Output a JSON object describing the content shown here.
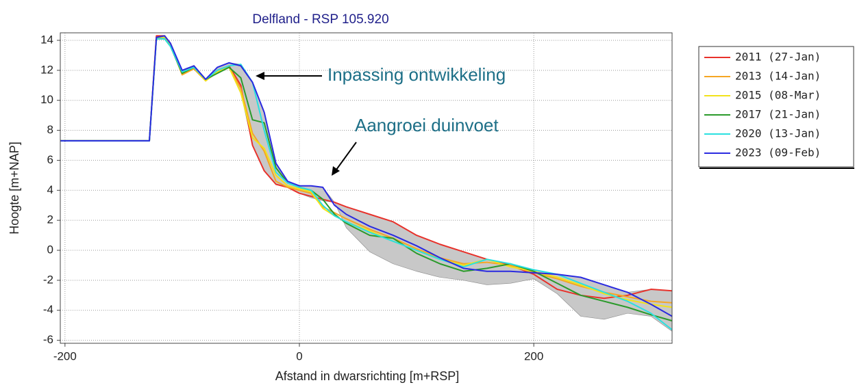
{
  "chart_data": {
    "type": "line",
    "title": "Delfland - RSP 105.920",
    "xlabel": "Afstand in dwarsrichting [m+RSP]",
    "ylabel": "Hoogte [m+NAP]",
    "annotations": [
      "Inpassing ontwikkeling",
      "Aangroei duinvoet"
    ],
    "xlim": [
      -204,
      318
    ],
    "ylim": [
      -6.2,
      14.5
    ],
    "xticks": [
      -200,
      0,
      200
    ],
    "yticks": [
      -6,
      -4,
      -2,
      0,
      2,
      4,
      6,
      8,
      10,
      12,
      14
    ],
    "grid": true,
    "legend": "outside-right",
    "x": [
      -204,
      -130,
      -128,
      -122,
      -115,
      -110,
      -100,
      -90,
      -80,
      -70,
      -60,
      -50,
      -40,
      -30,
      -20,
      -10,
      0,
      10,
      20,
      30,
      40,
      60,
      80,
      100,
      120,
      140,
      160,
      180,
      200,
      220,
      240,
      260,
      280,
      300,
      318
    ],
    "band": {
      "color": "#c8c8c8",
      "lower": [
        7.3,
        7.3,
        7.3,
        14.1,
        14.1,
        13.6,
        11.7,
        12.1,
        11.3,
        11.8,
        12.2,
        10.5,
        7.0,
        5.3,
        4.4,
        4.2,
        3.8,
        3.5,
        3.3,
        3.2,
        1.5,
        -0.1,
        -0.9,
        -1.4,
        -1.8,
        -2.0,
        -2.3,
        -2.2,
        -1.9,
        -2.9,
        -4.4,
        -4.6,
        -4.2,
        -4.4,
        -5.4
      ]
    },
    "series": [
      {
        "name": "2011 (27-Jan)",
        "color": "#e8312a",
        "values": [
          7.3,
          7.3,
          7.3,
          14.3,
          14.3,
          13.8,
          11.9,
          12.3,
          11.4,
          12.0,
          12.3,
          11.0,
          7.0,
          5.3,
          4.4,
          4.2,
          3.8,
          3.6,
          3.4,
          3.2,
          2.9,
          2.4,
          1.9,
          1.0,
          0.4,
          -0.1,
          -0.6,
          -1.0,
          -1.6,
          -2.6,
          -3.0,
          -3.2,
          -3.0,
          -2.6,
          -2.7
        ]
      },
      {
        "name": "2013 (14-Jan)",
        "color": "#f5a623",
        "values": [
          7.3,
          7.3,
          7.3,
          14.2,
          14.2,
          13.7,
          11.7,
          12.1,
          11.3,
          11.9,
          12.2,
          10.8,
          7.8,
          6.6,
          4.6,
          4.2,
          4.0,
          3.8,
          2.9,
          2.5,
          2.1,
          1.4,
          0.8,
          0.1,
          -0.5,
          -0.9,
          -0.8,
          -1.0,
          -1.5,
          -1.9,
          -2.4,
          -2.8,
          -3.1,
          -3.4,
          -3.5
        ]
      },
      {
        "name": "2015 (08-Mar)",
        "color": "#f2e21a",
        "values": [
          7.3,
          7.3,
          7.3,
          14.2,
          14.2,
          13.7,
          11.8,
          12.2,
          11.3,
          11.9,
          12.2,
          10.5,
          7.5,
          6.8,
          5.0,
          4.3,
          4.1,
          3.9,
          2.8,
          2.3,
          1.9,
          1.3,
          0.6,
          0.0,
          -0.6,
          -1.0,
          -0.6,
          -1.1,
          -1.4,
          -1.8,
          -2.3,
          -2.9,
          -3.3,
          -3.6,
          -3.8
        ]
      },
      {
        "name": "2017 (21-Jan)",
        "color": "#2a9a2a",
        "values": [
          7.3,
          7.3,
          7.3,
          14.1,
          14.1,
          13.6,
          11.8,
          12.2,
          11.4,
          11.8,
          12.2,
          11.5,
          8.7,
          8.5,
          5.5,
          4.5,
          4.2,
          4.0,
          3.4,
          2.4,
          1.8,
          1.0,
          0.8,
          -0.2,
          -0.9,
          -1.4,
          -1.2,
          -0.9,
          -1.4,
          -2.2,
          -3.0,
          -3.4,
          -3.8,
          -4.3,
          -4.7
        ]
      },
      {
        "name": "2020 (13-Jan)",
        "color": "#29e0e0",
        "values": [
          7.3,
          7.3,
          7.3,
          14.1,
          14.1,
          13.6,
          11.9,
          12.2,
          11.4,
          12.0,
          12.3,
          12.4,
          11.2,
          8.0,
          5.2,
          4.5,
          4.2,
          4.0,
          3.0,
          2.3,
          1.9,
          1.2,
          0.6,
          0.0,
          -0.6,
          -1.1,
          -0.6,
          -0.9,
          -1.3,
          -1.6,
          -2.2,
          -2.8,
          -3.4,
          -4.2,
          -5.3
        ]
      },
      {
        "name": "2023 (09-Feb)",
        "color": "#2a2ae0",
        "values": [
          7.3,
          7.3,
          7.3,
          14.2,
          14.3,
          13.8,
          12.0,
          12.3,
          11.4,
          12.2,
          12.5,
          12.3,
          11.2,
          9.2,
          5.8,
          4.6,
          4.3,
          4.3,
          4.2,
          3.0,
          2.4,
          1.6,
          1.0,
          0.3,
          -0.5,
          -1.2,
          -1.4,
          -1.4,
          -1.5,
          -1.6,
          -1.8,
          -2.3,
          -2.8,
          -3.6,
          -4.4
        ]
      }
    ]
  }
}
